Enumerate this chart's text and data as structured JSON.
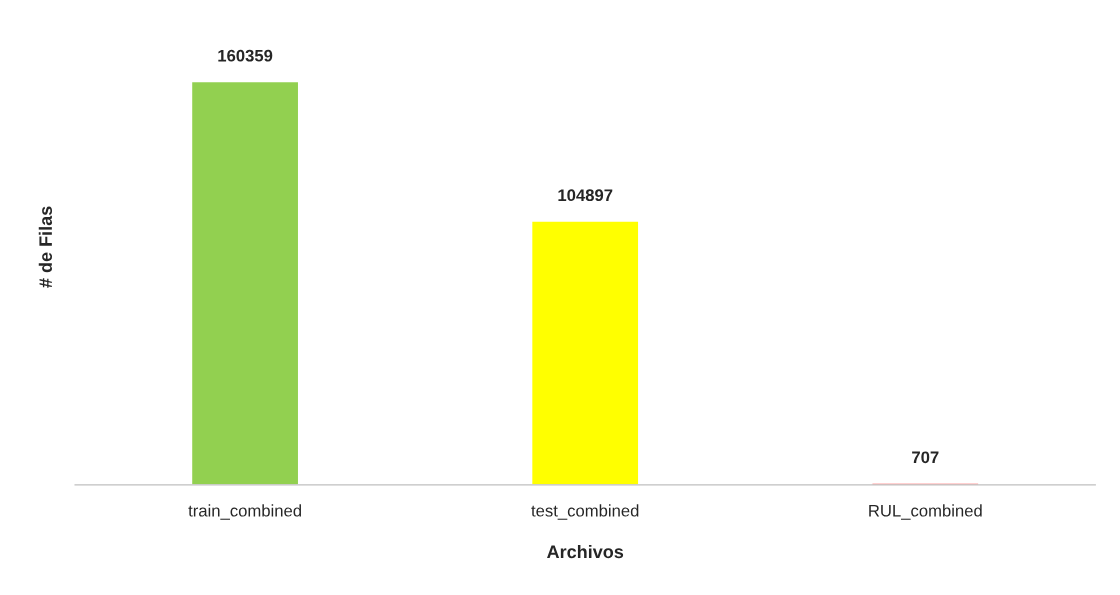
{
  "chart_data": {
    "type": "bar",
    "xlabel": "Archivos",
    "ylabel": "# de Filas",
    "categories": [
      "train_combined",
      "test_combined",
      "RUL_combined"
    ],
    "values": [
      160359,
      104897,
      707
    ],
    "colors": [
      "#92d050",
      "#ffff00",
      "#ff0000"
    ],
    "data_labels": true,
    "tick_labels": "x",
    "grid": false,
    "legend": false
  }
}
